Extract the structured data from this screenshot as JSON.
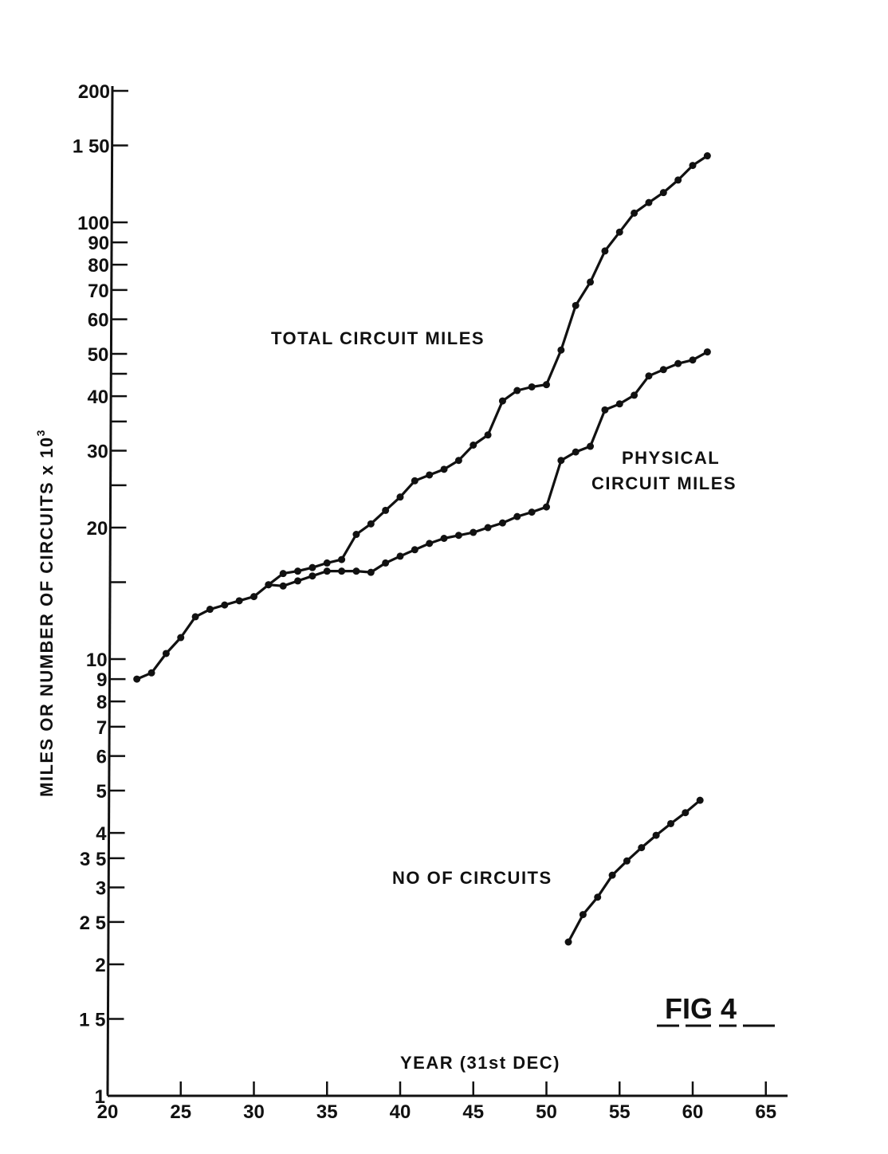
{
  "chart_data": {
    "type": "line",
    "ylabel_main": "MILES OR NUMBER OF CIRCUITS x 10",
    "ylabel_exp": "3",
    "xlabel": "YEAR (31st DEC)",
    "figure_label": "FIG 4",
    "yscale": "log",
    "xlim": [
      20,
      65
    ],
    "ylim": [
      1,
      200
    ],
    "x_ticks": [
      {
        "v": 20,
        "label": "20"
      },
      {
        "v": 25,
        "label": "25"
      },
      {
        "v": 30,
        "label": "30"
      },
      {
        "v": 35,
        "label": "35"
      },
      {
        "v": 40,
        "label": "40"
      },
      {
        "v": 45,
        "label": "45"
      },
      {
        "v": 50,
        "label": "50"
      },
      {
        "v": 55,
        "label": "55"
      },
      {
        "v": 60,
        "label": "60"
      },
      {
        "v": 65,
        "label": "65"
      }
    ],
    "y_ticks": [
      {
        "v": 1,
        "label": "1"
      },
      {
        "v": 1.5,
        "label": "1 5"
      },
      {
        "v": 2,
        "label": "2"
      },
      {
        "v": 2.5,
        "label": "2 5"
      },
      {
        "v": 3,
        "label": "3"
      },
      {
        "v": 3.5,
        "label": "3 5"
      },
      {
        "v": 4,
        "label": "4"
      },
      {
        "v": 5,
        "label": "5"
      },
      {
        "v": 6,
        "label": "6"
      },
      {
        "v": 7,
        "label": "7"
      },
      {
        "v": 8,
        "label": "8"
      },
      {
        "v": 9,
        "label": "9"
      },
      {
        "v": 10,
        "label": "10"
      },
      {
        "v": 15,
        "label": ""
      },
      {
        "v": 20,
        "label": "20"
      },
      {
        "v": 25,
        "label": ""
      },
      {
        "v": 30,
        "label": "30"
      },
      {
        "v": 35,
        "label": ""
      },
      {
        "v": 40,
        "label": "40"
      },
      {
        "v": 45,
        "label": ""
      },
      {
        "v": 50,
        "label": "50"
      },
      {
        "v": 60,
        "label": "60"
      },
      {
        "v": 70,
        "label": "70"
      },
      {
        "v": 80,
        "label": "80"
      },
      {
        "v": 90,
        "label": "90"
      },
      {
        "v": 100,
        "label": "100"
      },
      {
        "v": 150,
        "label": "1 50"
      },
      {
        "v": 200,
        "label": "200"
      }
    ],
    "series": [
      {
        "name": "TOTAL CIRCUIT MILES",
        "label_lines": [
          "TOTAL CIRCUIT MILES"
        ],
        "x": [
          22,
          23,
          24,
          25,
          26,
          27,
          28,
          29,
          30,
          31,
          32,
          33,
          34,
          35,
          36,
          37,
          38,
          39,
          40,
          41,
          42,
          43,
          44,
          45,
          46,
          47,
          48,
          49,
          50,
          51,
          52,
          53,
          54,
          55,
          56,
          57,
          58,
          59,
          60,
          61
        ],
        "y": [
          9.0,
          9.3,
          10.3,
          11.2,
          12.5,
          13.0,
          13.3,
          13.6,
          13.9,
          14.8,
          15.7,
          15.9,
          16.2,
          16.6,
          16.9,
          19.3,
          20.4,
          21.9,
          23.5,
          25.6,
          26.4,
          27.2,
          28.5,
          30.9,
          32.6,
          39.0,
          41.2,
          42.0,
          42.5,
          51.0,
          64.5,
          73.0,
          86.0,
          95.0,
          105.0,
          111.0,
          117.0,
          125.0,
          135.0,
          142.0
        ]
      },
      {
        "name": "PHYSICAL CIRCUIT MILES",
        "label_lines": [
          "PHYSICAL",
          "CIRCUIT MILES"
        ],
        "x": [
          31,
          32,
          33,
          34,
          35,
          36,
          37,
          38,
          39,
          40,
          41,
          42,
          43,
          44,
          45,
          46,
          47,
          48,
          49,
          50,
          51,
          52,
          53,
          54,
          55,
          56,
          57,
          58,
          59,
          60,
          61
        ],
        "y": [
          14.8,
          14.7,
          15.1,
          15.5,
          15.9,
          15.9,
          15.9,
          15.8,
          16.6,
          17.2,
          17.8,
          18.4,
          18.9,
          19.2,
          19.5,
          20.0,
          20.5,
          21.2,
          21.7,
          22.3,
          28.5,
          29.8,
          30.7,
          37.2,
          38.4,
          40.2,
          44.5,
          46.0,
          47.5,
          48.4,
          50.5
        ]
      },
      {
        "name": "NO OF CIRCUITS",
        "label_lines": [
          "NO OF CIRCUITS"
        ],
        "x": [
          51.5,
          52.5,
          53.5,
          54.5,
          55.5,
          56.5,
          57.5,
          58.5,
          59.5,
          60.5
        ],
        "y": [
          2.25,
          2.6,
          2.85,
          3.2,
          3.45,
          3.7,
          3.95,
          4.2,
          4.45,
          4.75
        ]
      }
    ]
  }
}
